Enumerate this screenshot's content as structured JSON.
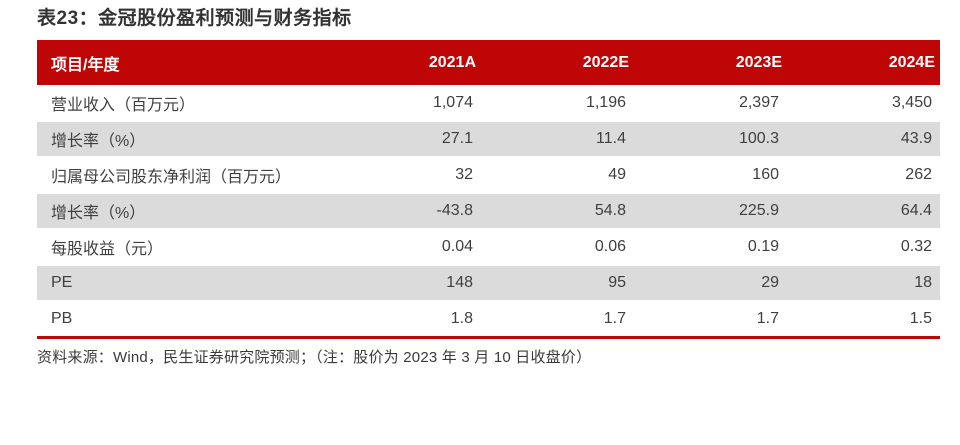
{
  "title": "表23：金冠股份盈利预测与财务指标",
  "colors": {
    "accent_red": "#be0606",
    "row_alt": "#dbdbdb"
  },
  "table": {
    "header": [
      "项目/年度",
      "2021A",
      "2022E",
      "2023E",
      "2024E"
    ],
    "rows": [
      {
        "label": "营业收入（百万元）",
        "values": [
          "1,074",
          "1,196",
          "2,397",
          "3,450"
        ]
      },
      {
        "label": "增长率（%）",
        "values": [
          "27.1",
          "11.4",
          "100.3",
          "43.9"
        ]
      },
      {
        "label": "归属母公司股东净利润（百万元）",
        "values": [
          "32",
          "49",
          "160",
          "262"
        ]
      },
      {
        "label": "增长率（%）",
        "values": [
          "-43.8",
          "54.8",
          "225.9",
          "64.4"
        ]
      },
      {
        "label": "每股收益（元）",
        "values": [
          "0.04",
          "0.06",
          "0.19",
          "0.32"
        ]
      },
      {
        "label": "PE",
        "values": [
          "148",
          "95",
          "29",
          "18"
        ]
      },
      {
        "label": "PB",
        "values": [
          "1.8",
          "1.7",
          "1.7",
          "1.5"
        ]
      }
    ]
  },
  "footer": "资料来源：Wind，民生证券研究院预测；（注：股价为 2023 年 3 月 10 日收盘价）"
}
